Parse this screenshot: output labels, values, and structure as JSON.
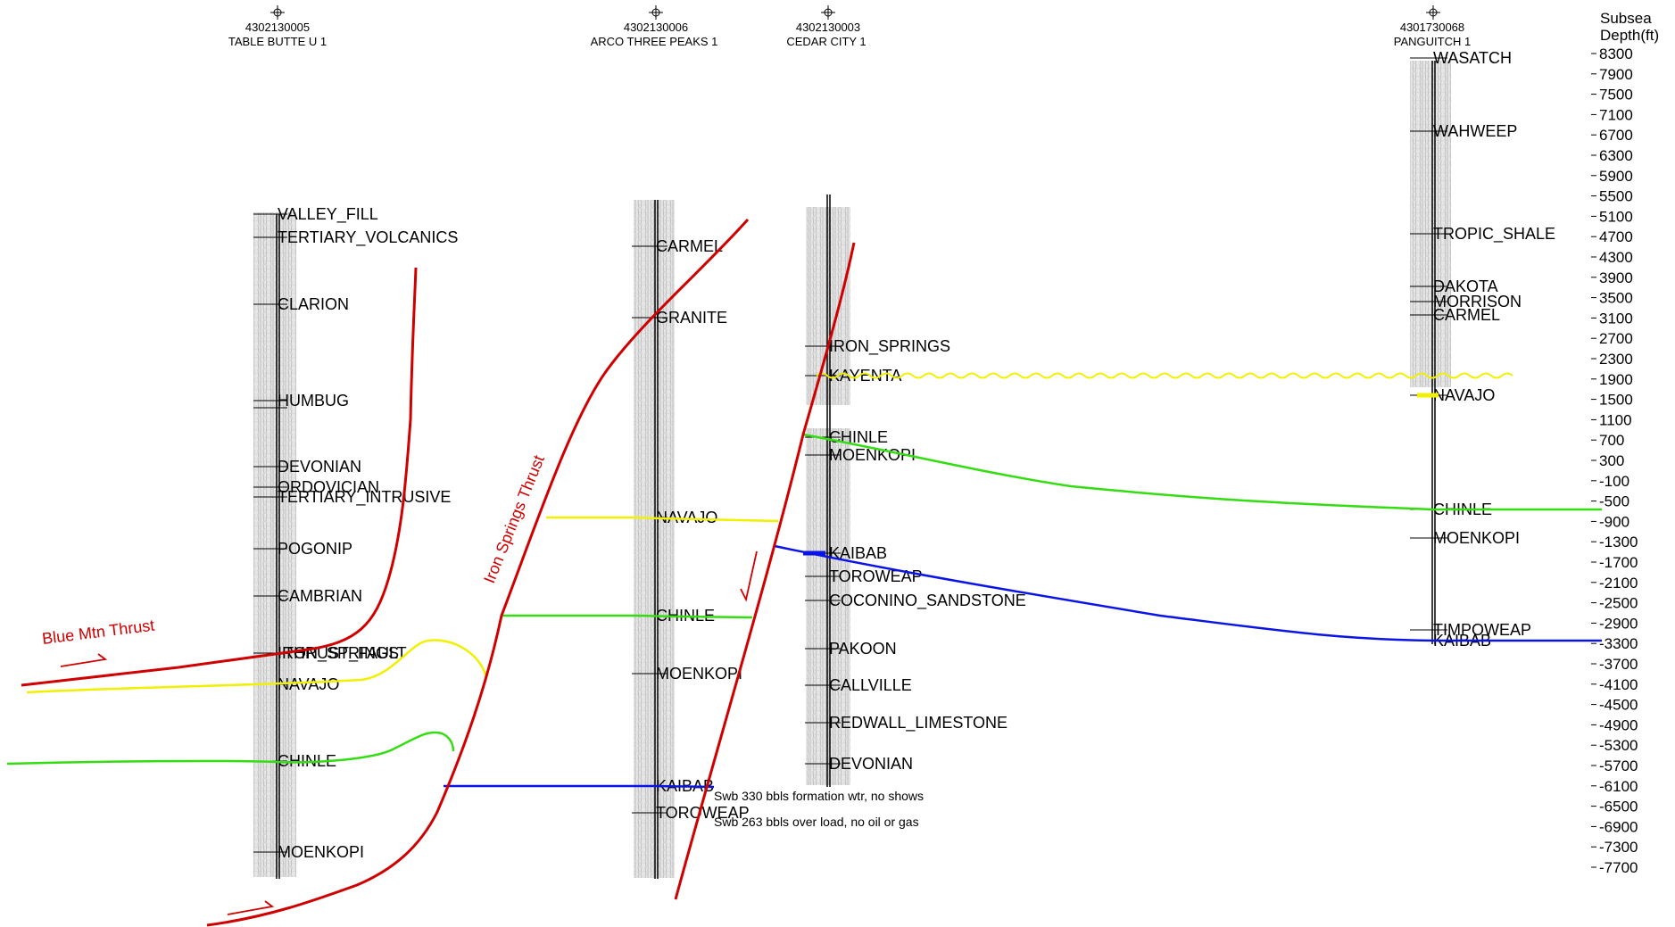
{
  "axis": {
    "title_line1": "Subsea",
    "title_line2": "Depth(ft)",
    "depths": [
      "8300",
      "7900",
      "7500",
      "7100",
      "6700",
      "6300",
      "5900",
      "5500",
      "5100",
      "4700",
      "4300",
      "3900",
      "3500",
      "3100",
      "2700",
      "2300",
      "1900",
      "1500",
      "1100",
      "700",
      "300",
      "-100",
      "-500",
      "-900",
      "-1300",
      "-1700",
      "-2100",
      "-2500",
      "-2900",
      "-3300",
      "-3700",
      "-4100",
      "-4500",
      "-4900",
      "-5300",
      "-5700",
      "-6100",
      "-6500",
      "-6900",
      "-7300",
      "-7700"
    ]
  },
  "wells": [
    {
      "api": "4302130005",
      "name": "TABLE BUTTE U 1",
      "formations": [
        "VALLEY_FILL",
        "TERTIARY_VOLCANICS",
        "CLARION",
        "HUMBUG",
        "DEVONIAN",
        "ORDOVICIAN",
        "TERTIARY_INTRUSIVE",
        "POGONIP",
        "CAMBRIAN",
        "IRON_SPRINGS",
        "THRUST_FAULT",
        "NAVAJO",
        "CHINLE",
        "MOENKOPI"
      ]
    },
    {
      "api": "4302130006",
      "name": "ARCO THREE PEAKS 1",
      "formations": [
        "CARMEL",
        "GRANITE",
        "NAVAJO",
        "CHINLE",
        "MOENKOPI",
        "KAIBAB",
        "TOROWEAP"
      ]
    },
    {
      "api": "4302130003",
      "name": "CEDAR CITY 1",
      "formations": [
        "IRON_SPRINGS",
        "KAYENTA",
        "CHINLE",
        "MOENKOPI",
        "KAIBAB",
        "TOROWEAP",
        "COCONINO_SANDSTONE",
        "PAKOON",
        "CALLVILLE",
        "REDWALL_LIMESTONE",
        "DEVONIAN"
      ]
    },
    {
      "api": "4301730068",
      "name": "PANGUITCH 1",
      "formations": [
        "WASATCH",
        "WAHWEEP",
        "TROPIC_SHALE",
        "DAKOTA",
        "MORRISON",
        "CARMEL",
        "NAVAJO",
        "CHINLE",
        "MOENKOPI",
        "TIMPOWEAP",
        "KAIBAB"
      ]
    }
  ],
  "annotations": {
    "blue_mtn_thrust": "Blue Mtn Thrust",
    "iron_springs_thrust": "Iron Springs Thrust",
    "swab_note_1": "Swb 330 bbls formation wtr, no shows",
    "swab_note_2": "Swb 263 bbls over load, no oil or gas"
  },
  "colors": {
    "fault": "#d00000",
    "navajo_horizon": "#f0f000",
    "chinle_horizon": "#33dd11",
    "kaibab_horizon": "#0a14e6",
    "log_track": "#e2e2e2"
  }
}
